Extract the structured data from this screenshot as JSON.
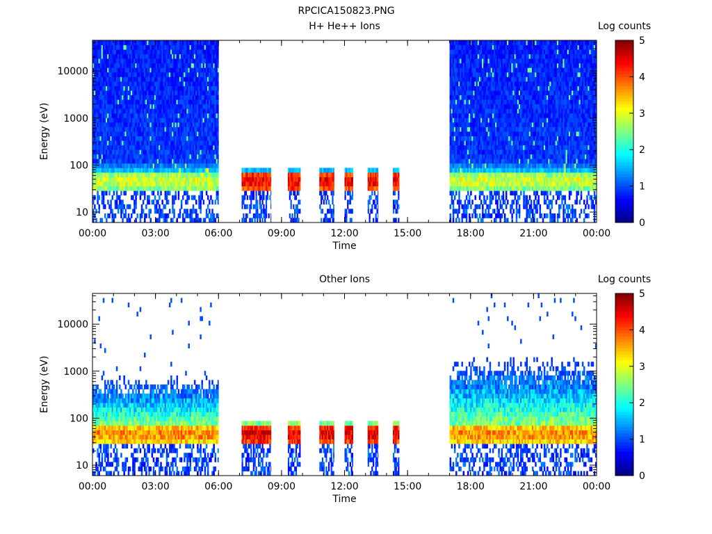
{
  "figure_title": "RPCICA150823.PNG",
  "chart_data": [
    {
      "type": "heatmap",
      "title": "H+ He++ Ions",
      "xlabel": "Time",
      "ylabel": "Energy (eV)",
      "x_unit": "hours",
      "xlim": [
        0,
        24
      ],
      "ylim": [
        6,
        45000
      ],
      "y_scale": "log",
      "x_tick_values": [
        0,
        3,
        6,
        9,
        12,
        15,
        18,
        21,
        24
      ],
      "x_tick_labels": [
        "00:00",
        "03:00",
        "06:00",
        "09:00",
        "12:00",
        "15:00",
        "18:00",
        "21:00",
        "00:00"
      ],
      "y_tick_values": [
        10,
        100,
        1000,
        10000
      ],
      "y_tick_labels": [
        "10",
        "100",
        "1000",
        "10000"
      ],
      "colorbar": {
        "label": "Log counts",
        "min": 0,
        "max": 5,
        "tick_labels": [
          "0",
          "1",
          "2",
          "3",
          "4",
          "5"
        ],
        "colormap": "jet"
      },
      "data_intervals": [
        [
          0.0,
          6.0
        ],
        [
          7.1,
          8.5
        ],
        [
          9.3,
          9.9
        ],
        [
          10.8,
          11.5
        ],
        [
          12.0,
          12.4
        ],
        [
          13.1,
          13.6
        ],
        [
          14.3,
          14.6
        ],
        [
          17.0,
          24.0
        ]
      ],
      "energy_band_ev": [
        30,
        70
      ],
      "band_peak_log_counts": {
        "day": 3.0,
        "bursts": 4.5
      },
      "background_log_counts": 0.9
    },
    {
      "type": "heatmap",
      "title": "Other Ions",
      "xlabel": "Time",
      "ylabel": "Energy (eV)",
      "x_unit": "hours",
      "xlim": [
        0,
        24
      ],
      "ylim": [
        6,
        45000
      ],
      "y_scale": "log",
      "x_tick_values": [
        0,
        3,
        6,
        9,
        12,
        15,
        18,
        21,
        24
      ],
      "x_tick_labels": [
        "00:00",
        "03:00",
        "06:00",
        "09:00",
        "12:00",
        "15:00",
        "18:00",
        "21:00",
        "00:00"
      ],
      "y_tick_values": [
        10,
        100,
        1000,
        10000
      ],
      "y_tick_labels": [
        "10",
        "100",
        "1000",
        "10000"
      ],
      "colorbar": {
        "label": "Log counts",
        "min": 0,
        "max": 5,
        "tick_labels": [
          "0",
          "1",
          "2",
          "3",
          "4",
          "5"
        ],
        "colormap": "jet"
      },
      "data_intervals": [
        [
          0.0,
          6.0
        ],
        [
          7.1,
          8.5
        ],
        [
          9.3,
          9.9
        ],
        [
          10.8,
          11.5
        ],
        [
          12.0,
          12.4
        ],
        [
          13.1,
          13.6
        ],
        [
          14.3,
          14.6
        ],
        [
          17.0,
          24.0
        ]
      ],
      "energy_band_ev": [
        30,
        70
      ],
      "band_peak_log_counts": {
        "day": 3.8,
        "bursts": 4.6
      },
      "background_log_counts": 0.3
    }
  ]
}
